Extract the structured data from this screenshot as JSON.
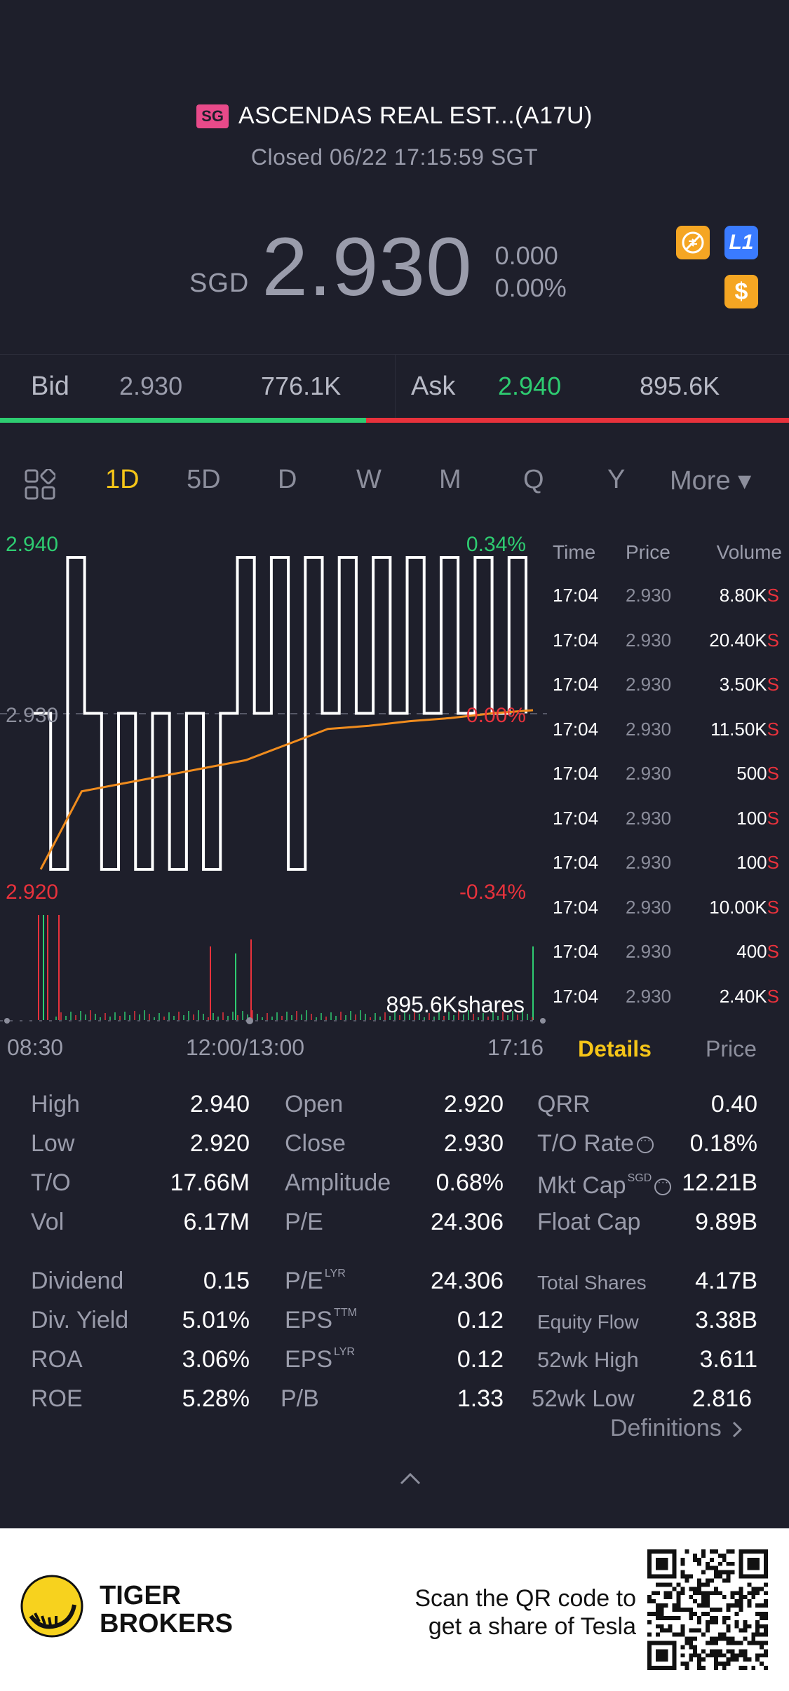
{
  "header": {
    "market_badge": "SG",
    "title": "ASCENDAS REAL EST...(A17U)",
    "status": "Closed 06/22 17:15:59 SGT",
    "currency": "SGD",
    "price": "2.930",
    "change": "0.000",
    "change_pct": "0.00%",
    "icons": [
      "forbidden-icon",
      "level1-icon",
      "dollar-icon"
    ],
    "l1_label": "L1",
    "dollar_label": "$"
  },
  "bidask": {
    "bid_label": "Bid",
    "bid_price": "2.930",
    "bid_size": "776.1K",
    "ask_label": "Ask",
    "ask_price": "2.940",
    "ask_size": "895.6K",
    "bid_fraction": 0.464
  },
  "tabs": [
    "1D",
    "5D",
    "D",
    "W",
    "M",
    "Q",
    "Y",
    "More ▾"
  ],
  "active_tab": "1D",
  "chart": {
    "high_label": "2.940",
    "high_pct": "0.34%",
    "mid_label": "2.930",
    "mid_pct": "0.00%",
    "low_label": "2.920",
    "low_pct": "-0.34%",
    "volume_label": "895.6Kshares",
    "time_start": "08:30",
    "time_mid": "12:00/13:00",
    "time_end": "17:16"
  },
  "chart_data": {
    "type": "line",
    "ylim": [
      2.92,
      2.94
    ],
    "series": [
      {
        "values": [
          2.93,
          2.92,
          2.94,
          2.93,
          2.92,
          2.93,
          2.92,
          2.93,
          2.92,
          2.93,
          2.92,
          2.93,
          2.94,
          2.93,
          2.94,
          2.92,
          2.94,
          2.93,
          2.94,
          2.93,
          2.94,
          2.93,
          2.94,
          2.93,
          2.94,
          2.93,
          2.94,
          2.93,
          2.94,
          2.93
        ]
      },
      {
        "values": [
          2.92,
          2.925,
          2.9255,
          2.926,
          2.9265,
          2.927,
          2.928,
          2.929,
          2.9292,
          2.9295,
          2.9297,
          2.93,
          2.9302
        ]
      }
    ]
  },
  "trades": {
    "headers": {
      "time": "Time",
      "price": "Price",
      "volume": "Volume"
    },
    "rows": [
      {
        "time": "17:04",
        "price": "2.930",
        "volume": "8.80K",
        "side": "S"
      },
      {
        "time": "17:04",
        "price": "2.930",
        "volume": "20.40K",
        "side": "S"
      },
      {
        "time": "17:04",
        "price": "2.930",
        "volume": "3.50K",
        "side": "S"
      },
      {
        "time": "17:04",
        "price": "2.930",
        "volume": "11.50K",
        "side": "S"
      },
      {
        "time": "17:04",
        "price": "2.930",
        "volume": "500",
        "side": "S"
      },
      {
        "time": "17:04",
        "price": "2.930",
        "volume": "100",
        "side": "S"
      },
      {
        "time": "17:04",
        "price": "2.930",
        "volume": "100",
        "side": "S"
      },
      {
        "time": "17:04",
        "price": "2.930",
        "volume": "10.00K",
        "side": "S"
      },
      {
        "time": "17:04",
        "price": "2.930",
        "volume": "400",
        "side": "S"
      },
      {
        "time": "17:04",
        "price": "2.930",
        "volume": "2.40K",
        "side": "S"
      }
    ]
  },
  "detail_tabs": {
    "details": "Details",
    "price": "Price"
  },
  "stats": {
    "high": {
      "label": "High",
      "value": "2.940"
    },
    "low": {
      "label": "Low",
      "value": "2.920"
    },
    "to": {
      "label": "T/O",
      "value": "17.66M"
    },
    "vol": {
      "label": "Vol",
      "value": "6.17M"
    },
    "open": {
      "label": "Open",
      "value": "2.920"
    },
    "close": {
      "label": "Close",
      "value": "2.930"
    },
    "amplitude": {
      "label": "Amplitude",
      "value": "0.68%"
    },
    "pe": {
      "label": "P/E",
      "value": "24.306"
    },
    "qrr": {
      "label": "QRR",
      "value": "0.40"
    },
    "to_rate": {
      "label": "T/O Rate",
      "value": "0.18%"
    },
    "mkt_cap": {
      "label": "Mkt Cap",
      "sup": "SGD",
      "value": "12.21B"
    },
    "float_cap": {
      "label": "Float Cap",
      "value": "9.89B"
    },
    "dividend": {
      "label": "Dividend",
      "value": "0.15"
    },
    "div_yield": {
      "label": "Div. Yield",
      "value": "5.01%"
    },
    "roa": {
      "label": "ROA",
      "value": "3.06%"
    },
    "roe": {
      "label": "ROE",
      "value": "5.28%"
    },
    "pe_lyr": {
      "label": "P/E",
      "sup": "LYR",
      "value": "24.306"
    },
    "eps_ttm": {
      "label": "EPS",
      "sup": "TTM",
      "value": "0.12"
    },
    "eps_lyr": {
      "label": "EPS",
      "sup": "LYR",
      "value": "0.12"
    },
    "pb": {
      "label": "P/B",
      "value": "1.33"
    },
    "total_shares": {
      "label": "Total Shares",
      "value": "4.17B"
    },
    "equity_flow": {
      "label": "Equity Flow",
      "value": "3.38B"
    },
    "wk52_high": {
      "label": "52wk High",
      "value": "3.611"
    },
    "wk52_low": {
      "label": "52wk Low",
      "value": "2.816"
    }
  },
  "definitions_label": "Definitions",
  "footer": {
    "brand_line1": "TIGER",
    "brand_line2": "BROKERS",
    "promo_line1": "Scan the QR code to",
    "promo_line2": "get a share of Tesla"
  },
  "colors": {
    "background": "#1e1f2b",
    "up": "#2ecc71",
    "down": "#e8323c",
    "accent": "#f5c518",
    "avg_line": "#f08c1e"
  }
}
